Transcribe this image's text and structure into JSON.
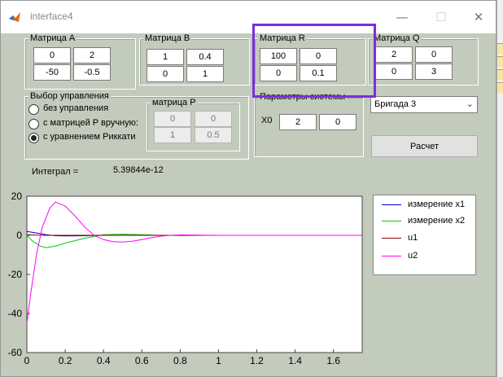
{
  "window": {
    "title": "interface4",
    "minimize": "—",
    "maximize": "☐",
    "close": "✕"
  },
  "matrix_a": {
    "title": "Матрица A",
    "cells": [
      "0",
      "2",
      "-50",
      "-0.5"
    ]
  },
  "matrix_b": {
    "title": "Матрица B",
    "cells": [
      "1",
      "0.4",
      "0",
      "1"
    ]
  },
  "matrix_r": {
    "title": "Матрица R",
    "cells": [
      "100",
      "0",
      "0",
      "0.1"
    ]
  },
  "matrix_q": {
    "title": "Матрица Q",
    "cells": [
      "2",
      "0",
      "0",
      "3"
    ]
  },
  "control": {
    "title": "Выбор управления",
    "options": [
      {
        "label": "без управления",
        "selected": false
      },
      {
        "label": "с матрицей P вручную:",
        "selected": false
      },
      {
        "label": "с уравнением Риккати",
        "selected": true
      }
    ]
  },
  "matrix_p": {
    "title": "матрица P",
    "cells": [
      "0",
      "0",
      "1",
      "0.5"
    ]
  },
  "system": {
    "title": "Параметры системы",
    "x0_label": "X0",
    "x0": [
      "2",
      "0"
    ]
  },
  "brigade": {
    "selected": "Бригада 3"
  },
  "calc_button": "Расчет",
  "integral": {
    "label": "Интеграл =",
    "value": "5.39844e-12"
  },
  "chart_data": {
    "type": "line",
    "xlim": [
      0,
      1.75
    ],
    "ylim": [
      -60,
      20
    ],
    "x_ticks": [
      "0",
      "0.2",
      "0.4",
      "0.6",
      "0.8",
      "1",
      "1.2",
      "1.4",
      "1.6"
    ],
    "y_ticks": [
      "20",
      "0",
      "-20",
      "-40",
      "-60"
    ],
    "legend_position": "right",
    "series": [
      {
        "name": "измерение x1",
        "color": "#0000cc",
        "x": [
          0,
          0.05,
          0.1,
          0.15,
          0.2,
          0.3,
          0.4,
          0.5,
          0.6,
          0.8,
          1.0,
          1.75
        ],
        "y": [
          2,
          1.2,
          0.3,
          -0.2,
          -0.3,
          -0.2,
          0,
          0.05,
          0,
          0,
          0,
          0
        ]
      },
      {
        "name": "измерение x2",
        "color": "#00cc00",
        "x": [
          0,
          0.03,
          0.07,
          0.1,
          0.15,
          0.2,
          0.3,
          0.4,
          0.5,
          0.6,
          0.7,
          0.8,
          1.0,
          1.75
        ],
        "y": [
          0,
          -3,
          -5.5,
          -6.3,
          -5.5,
          -4,
          -1.5,
          0.3,
          0.6,
          0.3,
          0,
          -0.1,
          0,
          0
        ]
      },
      {
        "name": "u1",
        "color": "#880000",
        "x": [
          0,
          0.05,
          0.1,
          0.2,
          0.3,
          1.75
        ],
        "y": [
          0.3,
          0.1,
          0,
          0,
          0,
          0
        ]
      },
      {
        "name": "u2",
        "color": "#ff00ff",
        "x": [
          0,
          0.02,
          0.05,
          0.08,
          0.12,
          0.15,
          0.2,
          0.25,
          0.3,
          0.35,
          0.4,
          0.45,
          0.5,
          0.55,
          0.6,
          0.65,
          0.7,
          0.75,
          0.8,
          0.9,
          1.0,
          1.75
        ],
        "y": [
          -45,
          -30,
          -10,
          4,
          14,
          17,
          15,
          10,
          4.5,
          0,
          -2.2,
          -3.2,
          -3.4,
          -3,
          -2.2,
          -1.2,
          -0.4,
          0,
          0.2,
          0.1,
          0,
          0
        ]
      }
    ]
  }
}
